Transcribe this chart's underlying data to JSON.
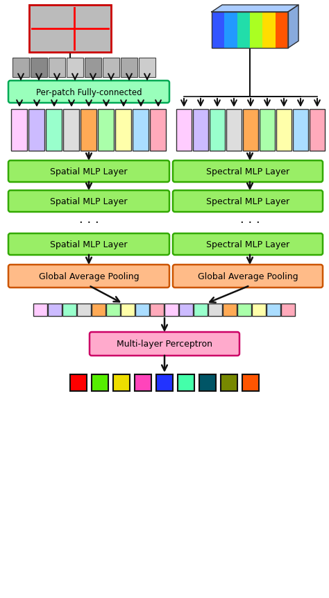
{
  "fig_width": 4.74,
  "fig_height": 8.62,
  "bg_color": "#ffffff",
  "patch_colors": [
    "#ffccff",
    "#ccbbff",
    "#99ffcc",
    "#dddddd",
    "#ffaa55",
    "#aaffaa",
    "#ffffaa",
    "#aaddff",
    "#ffaabb"
  ],
  "combined_colors": [
    "#ffccff",
    "#ccbbff",
    "#99ffcc",
    "#dddddd",
    "#ffaa55",
    "#aaffaa",
    "#ffffaa",
    "#aaddff",
    "#ffaabb",
    "#ffccff",
    "#ccbbff",
    "#99ffcc",
    "#dddddd",
    "#ffaa55",
    "#aaffaa",
    "#ffffaa",
    "#aaddff",
    "#ffaabb"
  ],
  "output_colors": [
    "#ff0000",
    "#55ee00",
    "#eedd00",
    "#ff44bb",
    "#2233ff",
    "#44ffaa",
    "#005566",
    "#778800",
    "#ff5500"
  ],
  "mlp_box_color": "#ffaacc",
  "mlp_box_edge": "#cc0066",
  "spatial_box_color": "#99ee66",
  "spatial_box_edge": "#33aa00",
  "spectral_box_color": "#99ee66",
  "spectral_box_edge": "#33aa00",
  "gap_box_color": "#ffbb88",
  "gap_box_edge": "#cc5500",
  "fc_box_color": "#99ffbb",
  "fc_box_edge": "#00aa55",
  "arrow_color": "#111111",
  "text_color": "#000000",
  "spatial_label": "Spatial MLP Layer",
  "spectral_label": "Spectral MLP Layer",
  "gap_label": "Global Average Pooling",
  "fc_label": "Per-patch Fully-connected",
  "mlp_label": "Multi-layer Perceptron"
}
